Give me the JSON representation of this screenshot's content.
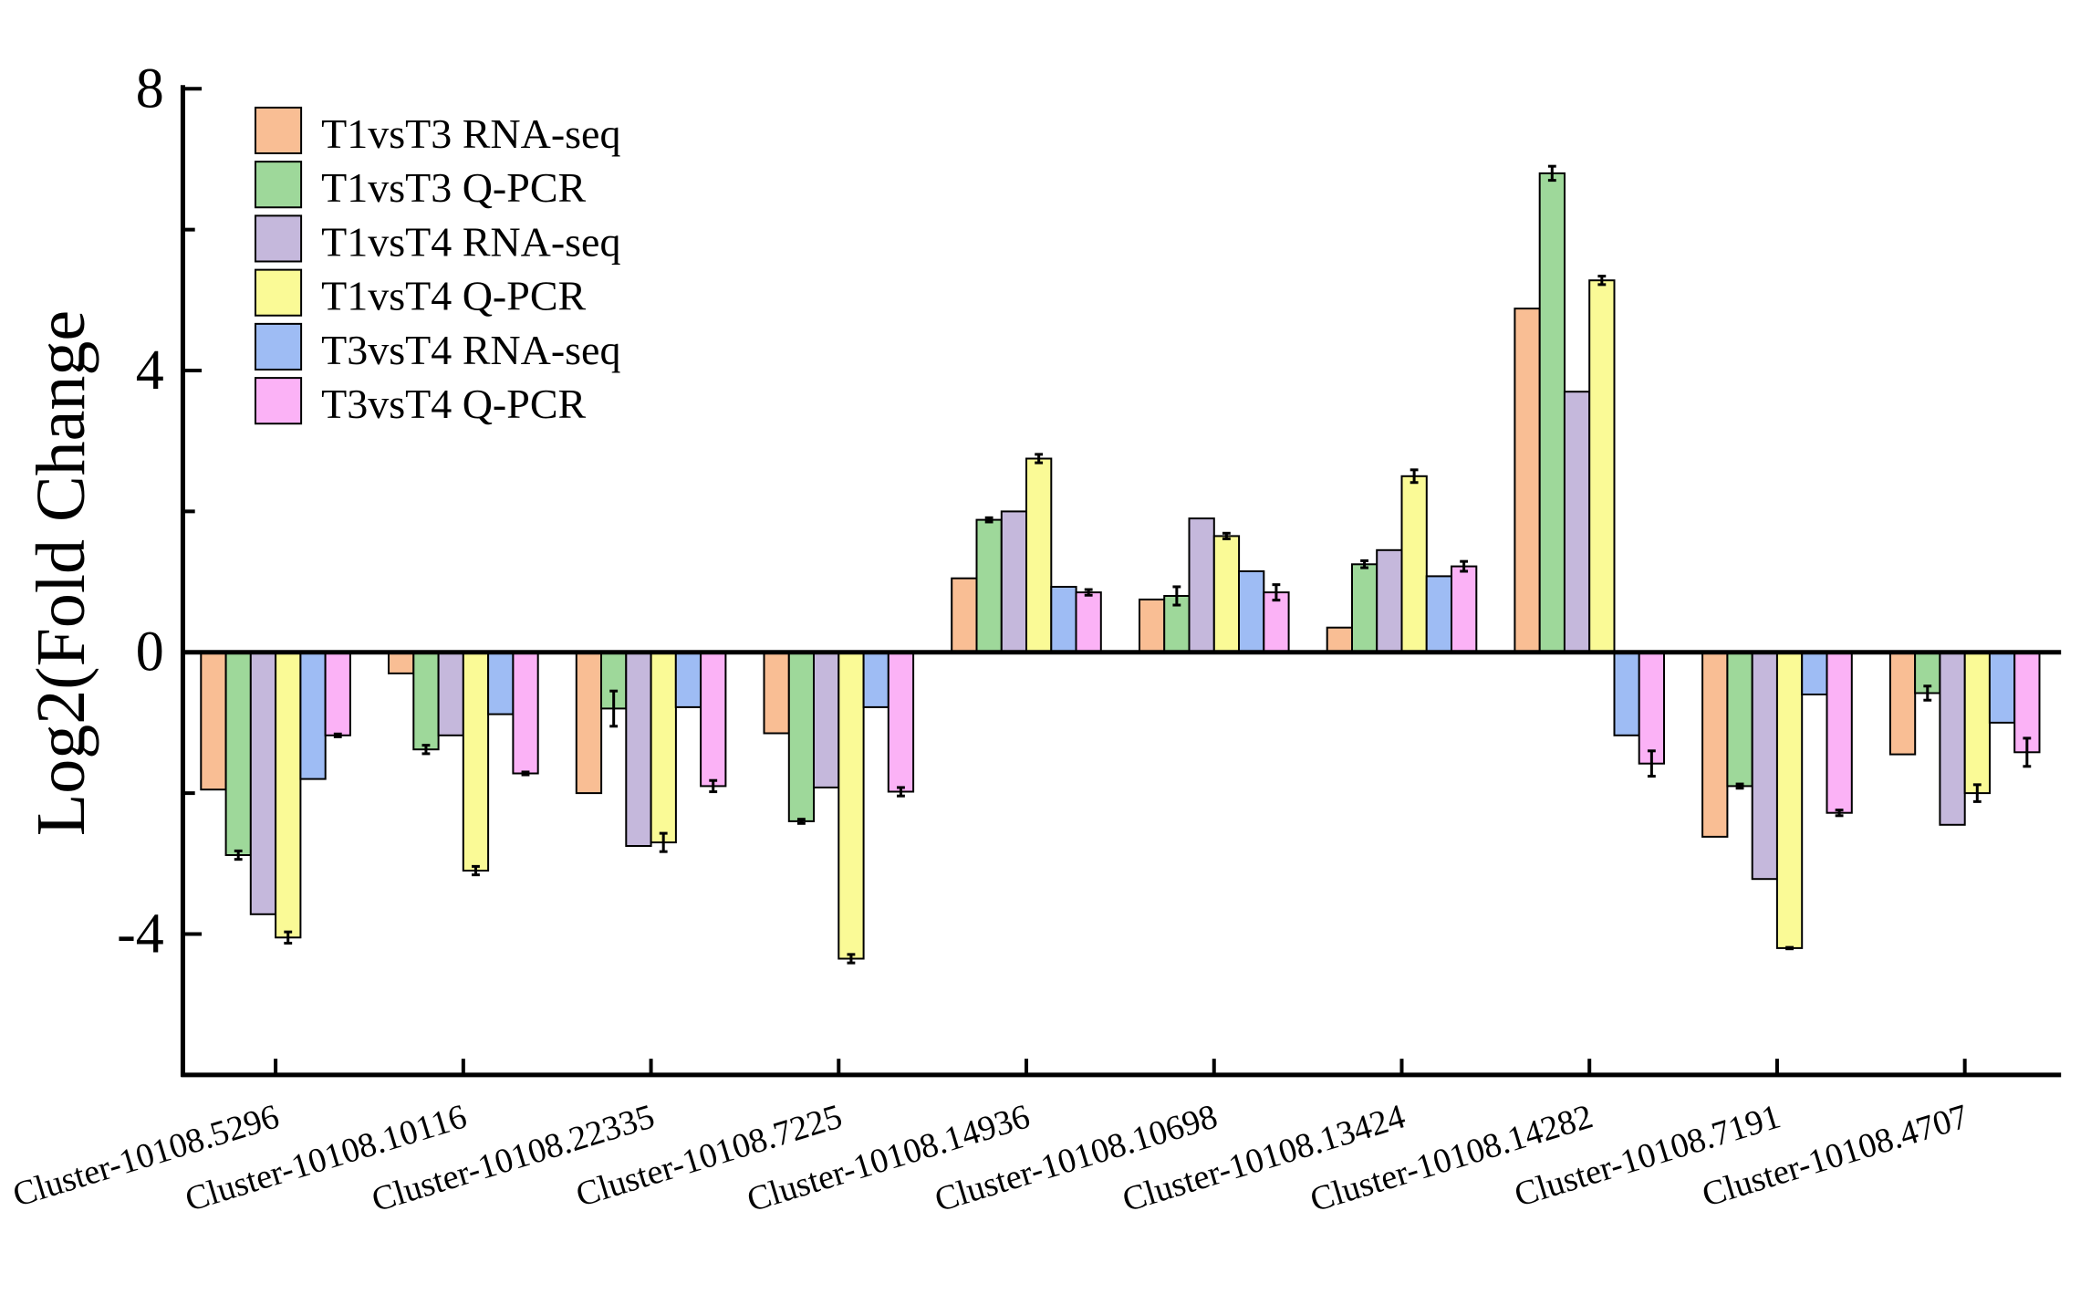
{
  "chart_data": {
    "type": "bar",
    "title": "",
    "xlabel": "",
    "ylabel": "Log2(Fold Change",
    "ylim": [
      -6,
      8
    ],
    "yticks": [
      8,
      4,
      0,
      -4
    ],
    "ytick_labels": [
      "8",
      "4",
      "0",
      "-4"
    ],
    "legend_position": "top-left",
    "categories": [
      "Cluster-10108.5296",
      "Cluster-10108.10116",
      "Cluster-10108.22335",
      "Cluster-10108.7225",
      "Cluster-10108.14936",
      "Cluster-10108.10698",
      "Cluster-10108.13424",
      "Cluster-10108.14282",
      "Cluster-10108.7191",
      "Cluster-10108.4707"
    ],
    "series": [
      {
        "name": "T1vsT3 RNA-seq",
        "color": "#F9BE94",
        "values": [
          -1.95,
          -0.3,
          -2.0,
          -1.15,
          1.05,
          0.75,
          0.35,
          4.88,
          -2.62,
          -1.45
        ],
        "errors": null
      },
      {
        "name": "T1vsT3 Q-PCR",
        "color": "#9ED89A",
        "values": [
          -2.88,
          -1.38,
          -0.8,
          -2.4,
          1.88,
          0.8,
          1.25,
          6.8,
          -1.9,
          -0.58
        ],
        "errors": [
          0.06,
          0.06,
          0.25,
          0.03,
          0.03,
          0.13,
          0.05,
          0.1,
          0.03,
          0.1
        ]
      },
      {
        "name": "T1vsT4 RNA-seq",
        "color": "#C5B8DC",
        "values": [
          -3.72,
          -1.18,
          -2.75,
          -1.92,
          2.0,
          1.9,
          1.45,
          3.7,
          -3.22,
          -2.45
        ],
        "errors": null
      },
      {
        "name": "T1vsT4 Q-PCR",
        "color": "#FAFA96",
        "values": [
          -4.05,
          -3.1,
          -2.7,
          -4.35,
          2.75,
          1.65,
          2.5,
          5.28,
          -4.2,
          -2.0
        ],
        "errors": [
          0.08,
          0.06,
          0.13,
          0.06,
          0.06,
          0.04,
          0.09,
          0.06,
          0.01,
          0.12
        ]
      },
      {
        "name": "T3vsT4 RNA-seq",
        "color": "#9EBCF4",
        "values": [
          -1.8,
          -0.88,
          -0.78,
          -0.78,
          0.93,
          1.15,
          1.08,
          -1.18,
          -0.6,
          -1.0
        ],
        "errors": null
      },
      {
        "name": "T3vsT4 Q-PCR",
        "color": "#FBB2F6",
        "values": [
          -1.18,
          -1.72,
          -1.9,
          -1.98,
          0.85,
          0.85,
          1.22,
          -1.58,
          -2.28,
          -1.42
        ],
        "errors": [
          0.02,
          0.02,
          0.08,
          0.06,
          0.04,
          0.11,
          0.07,
          0.18,
          0.04,
          0.2
        ]
      }
    ]
  }
}
